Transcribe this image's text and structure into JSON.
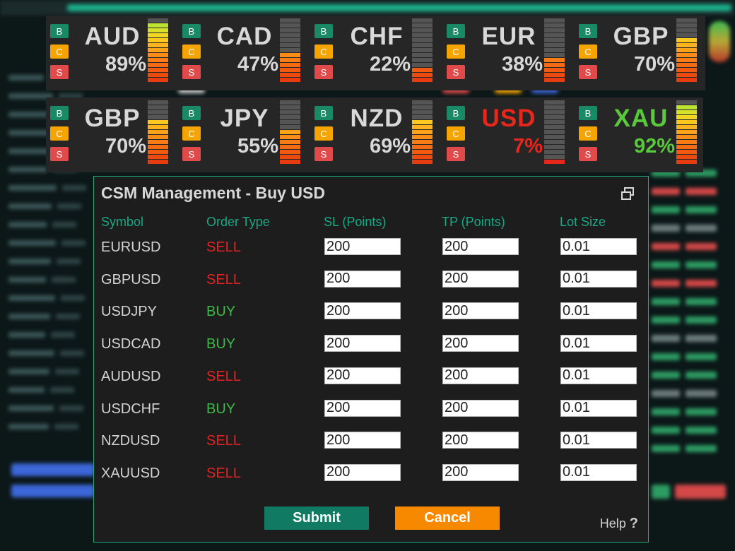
{
  "button_labels": {
    "buy": "B",
    "close": "C",
    "sell": "S"
  },
  "strength_rows": [
    [
      {
        "currency": "AUD",
        "percent": "89%",
        "value": 89,
        "name_color": "#d8d8d8",
        "pct_color": "#d8d8d8"
      },
      {
        "currency": "CAD",
        "percent": "47%",
        "value": 47,
        "name_color": "#d8d8d8",
        "pct_color": "#d8d8d8"
      },
      {
        "currency": "CHF",
        "percent": "22%",
        "value": 22,
        "name_color": "#d8d8d8",
        "pct_color": "#d8d8d8"
      },
      {
        "currency": "EUR",
        "percent": "38%",
        "value": 38,
        "name_color": "#d8d8d8",
        "pct_color": "#d8d8d8"
      },
      {
        "currency": "GBP",
        "percent": "70%",
        "value": 70,
        "name_color": "#d8d8d8",
        "pct_color": "#d8d8d8"
      }
    ],
    [
      {
        "currency": "GBP",
        "percent": "70%",
        "value": 70,
        "name_color": "#d8d8d8",
        "pct_color": "#d8d8d8"
      },
      {
        "currency": "JPY",
        "percent": "55%",
        "value": 55,
        "name_color": "#d8d8d8",
        "pct_color": "#d8d8d8"
      },
      {
        "currency": "NZD",
        "percent": "69%",
        "value": 69,
        "name_color": "#d8d8d8",
        "pct_color": "#d8d8d8"
      },
      {
        "currency": "USD",
        "percent": "7%",
        "value": 7,
        "name_color": "#e8271c",
        "pct_color": "#e8271c"
      },
      {
        "currency": "XAU",
        "percent": "92%",
        "value": 92,
        "name_color": "#58c93a",
        "pct_color": "#58c93a"
      }
    ]
  ],
  "dialog": {
    "title": "CSM Management - Buy USD",
    "headers": {
      "symbol": "Symbol",
      "order_type": "Order Type",
      "sl": "SL (Points)",
      "tp": "TP (Points)",
      "lot": "Lot Size"
    },
    "rows": [
      {
        "symbol": "EURUSD",
        "order": "SELL",
        "sl": "200",
        "tp": "200",
        "lot": "0.01"
      },
      {
        "symbol": "GBPUSD",
        "order": "SELL",
        "sl": "200",
        "tp": "200",
        "lot": "0.01"
      },
      {
        "symbol": "USDJPY",
        "order": "BUY",
        "sl": "200",
        "tp": "200",
        "lot": "0.01"
      },
      {
        "symbol": "USDCAD",
        "order": "BUY",
        "sl": "200",
        "tp": "200",
        "lot": "0.01"
      },
      {
        "symbol": "AUDUSD",
        "order": "SELL",
        "sl": "200",
        "tp": "200",
        "lot": "0.01"
      },
      {
        "symbol": "USDCHF",
        "order": "BUY",
        "sl": "200",
        "tp": "200",
        "lot": "0.01"
      },
      {
        "symbol": "NZDUSD",
        "order": "SELL",
        "sl": "200",
        "tp": "200",
        "lot": "0.01"
      },
      {
        "symbol": "XAUUSD",
        "order": "SELL",
        "sl": "200",
        "tp": "200",
        "lot": "0.01"
      }
    ],
    "submit_label": "Submit",
    "cancel_label": "Cancel",
    "help_label": "Help",
    "help_mark": "?"
  },
  "colors": {
    "accent": "#1fa87d",
    "sell": "#e02424",
    "buy": "#3db84a",
    "submit": "#117a62",
    "cancel": "#f78900"
  },
  "icons": {
    "restore": "restore-window-icon"
  }
}
